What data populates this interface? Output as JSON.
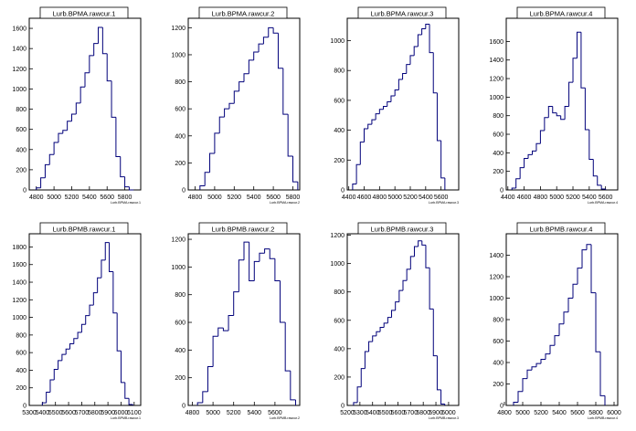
{
  "canvas": {
    "background": "#ffffff",
    "line_color": "#00007a",
    "axis_color": "#000000"
  },
  "chart_data": [
    {
      "type": "histogram",
      "title": "Lurb.BPMA.rawcur.1",
      "xlabel": "Lurb.BPMA.rawcur.1",
      "xlim": [
        4720,
        5980
      ],
      "ylim": [
        0,
        1700
      ],
      "xticks": [
        4800,
        5000,
        5200,
        5400,
        5600,
        5800
      ],
      "yticks": [
        0,
        200,
        400,
        600,
        800,
        1000,
        1200,
        1400,
        1600
      ],
      "x": [
        4800,
        4850,
        4900,
        4950,
        5000,
        5050,
        5100,
        5150,
        5200,
        5250,
        5300,
        5350,
        5400,
        5450,
        5500,
        5550,
        5600,
        5650,
        5700,
        5750,
        5800,
        5850
      ],
      "values": [
        20,
        120,
        250,
        350,
        470,
        560,
        590,
        680,
        750,
        860,
        1020,
        1160,
        1330,
        1450,
        1610,
        1350,
        1080,
        720,
        330,
        130,
        30,
        0
      ]
    },
    {
      "type": "histogram",
      "title": "Lurb.BPMA.rawcur.2",
      "xlabel": "Lurb.BPMA.rawcur.2",
      "xlim": [
        4730,
        5870
      ],
      "ylim": [
        0,
        1270
      ],
      "xticks": [
        4800,
        5000,
        5200,
        5400,
        5600,
        5800
      ],
      "yticks": [
        0,
        200,
        400,
        600,
        800,
        1000,
        1200
      ],
      "x": [
        4850,
        4900,
        4950,
        5000,
        5050,
        5100,
        5150,
        5200,
        5250,
        5300,
        5350,
        5400,
        5450,
        5500,
        5550,
        5600,
        5650,
        5700,
        5750,
        5800
      ],
      "values": [
        30,
        130,
        270,
        420,
        540,
        600,
        640,
        730,
        800,
        860,
        960,
        1020,
        1080,
        1130,
        1200,
        1160,
        900,
        560,
        250,
        60
      ]
    },
    {
      "type": "histogram",
      "title": "Lurb.BPMA.rawcur.3",
      "xlabel": "Lurb.BPMA.rawcur.3",
      "xlim": [
        4380,
        5830
      ],
      "ylim": [
        0,
        1150
      ],
      "xticks": [
        4400,
        4600,
        4800,
        5000,
        5200,
        5400,
        5600
      ],
      "yticks": [
        0,
        200,
        400,
        600,
        800,
        1000
      ],
      "x": [
        4450,
        4500,
        4550,
        4600,
        4650,
        4700,
        4750,
        4800,
        4850,
        4900,
        4950,
        5000,
        5050,
        5100,
        5150,
        5200,
        5250,
        5300,
        5350,
        5400,
        5450,
        5500,
        5550,
        5600
      ],
      "values": [
        40,
        170,
        320,
        410,
        440,
        470,
        510,
        540,
        560,
        590,
        630,
        670,
        740,
        780,
        840,
        900,
        960,
        1040,
        1080,
        1110,
        920,
        650,
        330,
        80
      ]
    },
    {
      "type": "histogram",
      "title": "Lurb.BPMA.rawcur.4",
      "xlabel": "Lurb.BPMA.rawcur.4",
      "xlim": [
        4380,
        5750
      ],
      "ylim": [
        0,
        1850
      ],
      "xticks": [
        4400,
        4600,
        4800,
        5000,
        5200,
        5400,
        5600
      ],
      "yticks": [
        0,
        200,
        400,
        600,
        800,
        1000,
        1200,
        1400,
        1600
      ],
      "x": [
        4450,
        4500,
        4550,
        4600,
        4650,
        4700,
        4750,
        4800,
        4850,
        4900,
        4950,
        5000,
        5050,
        5100,
        5150,
        5200,
        5250,
        5300,
        5350,
        5400,
        5450,
        5500,
        5550
      ],
      "values": [
        20,
        120,
        240,
        340,
        380,
        420,
        500,
        640,
        780,
        900,
        830,
        800,
        760,
        900,
        1160,
        1420,
        1700,
        1100,
        650,
        330,
        150,
        50,
        10
      ]
    },
    {
      "type": "histogram",
      "title": "Lurb.BPMB.rawcur.1",
      "xlabel": "Lurb.BPMB.rawcur.1",
      "xlim": [
        5300,
        6150
      ],
      "ylim": [
        0,
        1950
      ],
      "xticks": [
        5300,
        5400,
        5500,
        5600,
        5700,
        5800,
        5900,
        6000,
        6100
      ],
      "yticks": [
        0,
        200,
        400,
        600,
        800,
        1000,
        1200,
        1400,
        1600,
        1800
      ],
      "x": [
        5400,
        5430,
        5460,
        5490,
        5520,
        5550,
        5580,
        5610,
        5640,
        5670,
        5700,
        5730,
        5760,
        5790,
        5820,
        5850,
        5880,
        5910,
        5940,
        5970,
        6000,
        6030,
        6060
      ],
      "values": [
        30,
        150,
        290,
        410,
        510,
        580,
        640,
        700,
        760,
        830,
        920,
        1020,
        1140,
        1280,
        1450,
        1650,
        1850,
        1520,
        1050,
        620,
        260,
        80,
        10
      ]
    },
    {
      "type": "histogram",
      "title": "Lurb.BPMB.rawcur.2",
      "xlabel": "Lurb.BPMB.rawcur.2",
      "xlim": [
        4760,
        5840
      ],
      "ylim": [
        0,
        1240
      ],
      "xticks": [
        4800,
        5000,
        5200,
        5400,
        5600
      ],
      "yticks": [
        0,
        200,
        400,
        600,
        800,
        1000,
        1200
      ],
      "x": [
        4850,
        4900,
        4950,
        5000,
        5050,
        5100,
        5150,
        5200,
        5250,
        5300,
        5350,
        5400,
        5450,
        5500,
        5550,
        5600,
        5650,
        5700,
        5750
      ],
      "values": [
        20,
        100,
        280,
        500,
        560,
        540,
        650,
        820,
        1050,
        1180,
        900,
        1040,
        1100,
        1130,
        1060,
        900,
        600,
        250,
        40
      ]
    },
    {
      "type": "histogram",
      "title": "Lurb.BPMB.rawcur.3",
      "xlabel": "Lurb.BPMB.rawcur.3",
      "xlim": [
        5200,
        6080
      ],
      "ylim": [
        0,
        1210
      ],
      "xticks": [
        5200,
        5300,
        5400,
        5500,
        5600,
        5700,
        5800,
        5900,
        6000
      ],
      "yticks": [
        0,
        200,
        400,
        600,
        800,
        1000,
        1200
      ],
      "x": [
        5250,
        5280,
        5310,
        5340,
        5370,
        5400,
        5430,
        5460,
        5490,
        5520,
        5550,
        5580,
        5610,
        5640,
        5670,
        5700,
        5730,
        5760,
        5790,
        5820,
        5850,
        5880,
        5910,
        5940
      ],
      "values": [
        20,
        130,
        260,
        380,
        450,
        490,
        520,
        550,
        580,
        620,
        670,
        730,
        810,
        880,
        960,
        1050,
        1120,
        1160,
        1130,
        970,
        680,
        350,
        110,
        10
      ]
    },
    {
      "type": "histogram",
      "title": "Lurb.BPMB.rawcur.4",
      "xlabel": "Lurb.BPMB.rawcur.4",
      "xlim": [
        4820,
        6040
      ],
      "ylim": [
        0,
        1600
      ],
      "xticks": [
        4800,
        5000,
        5200,
        5400,
        5600,
        5800,
        6000
      ],
      "yticks": [
        0,
        200,
        400,
        600,
        800,
        1000,
        1200,
        1400
      ],
      "x": [
        4900,
        4950,
        5000,
        5050,
        5100,
        5150,
        5200,
        5250,
        5300,
        5350,
        5400,
        5450,
        5500,
        5550,
        5600,
        5650,
        5700,
        5750,
        5800,
        5850
      ],
      "values": [
        30,
        130,
        250,
        330,
        360,
        390,
        430,
        480,
        560,
        650,
        760,
        870,
        1000,
        1130,
        1280,
        1450,
        1500,
        1050,
        500,
        90
      ]
    }
  ]
}
